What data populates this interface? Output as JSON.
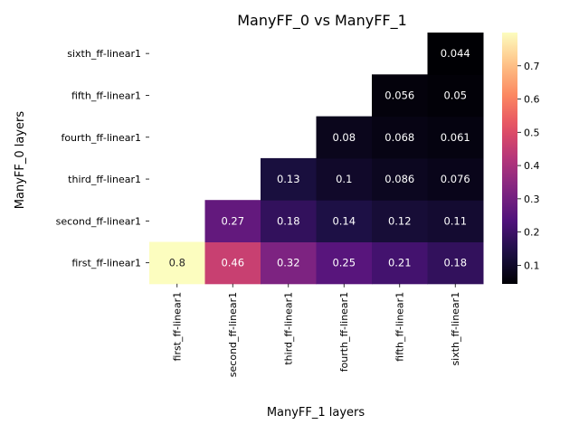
{
  "chart_data": {
    "type": "heatmap",
    "title": "ManyFF_0 vs ManyFF_1",
    "xlabel": "ManyFF_1 layers",
    "ylabel": "ManyFF_0 layers",
    "x_categories": [
      "first_ff-linear1",
      "second_ff-linear1",
      "third_ff-linear1",
      "fourth_ff-linear1",
      "fifth_ff-linear1",
      "sixth_ff-linear1"
    ],
    "y_categories": [
      "first_ff-linear1",
      "second_ff-linear1",
      "third_ff-linear1",
      "fourth_ff-linear1",
      "fifth_ff-linear1",
      "sixth_ff-linear1"
    ],
    "values": [
      [
        0.8,
        0.46,
        0.32,
        0.25,
        0.21,
        0.18
      ],
      [
        null,
        0.27,
        0.18,
        0.14,
        0.12,
        0.11
      ],
      [
        null,
        null,
        0.13,
        0.1,
        0.086,
        0.076
      ],
      [
        null,
        null,
        null,
        0.08,
        0.068,
        0.061
      ],
      [
        null,
        null,
        null,
        null,
        0.056,
        0.05
      ],
      [
        null,
        null,
        null,
        null,
        null,
        0.044
      ]
    ],
    "colormap": "magma",
    "colorbar": {
      "range": [
        0.044,
        0.8
      ],
      "ticks": [
        0.1,
        0.2,
        0.3,
        0.4,
        0.5,
        0.6,
        0.7
      ]
    },
    "grid": false
  }
}
